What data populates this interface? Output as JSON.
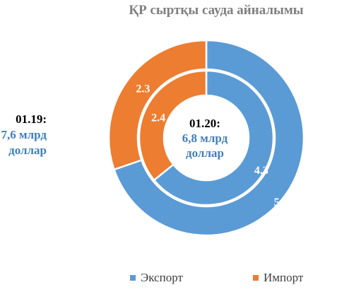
{
  "chart_data": {
    "type": "donut",
    "title": "ҚР сыртқы сауда айналымы",
    "categories": [
      "Экспорт",
      "Импорт"
    ],
    "colors": {
      "Экспорт": "#5b9bd5",
      "Импорт": "#ed7d31"
    },
    "series": [
      {
        "name": "01.19",
        "ring": "outer",
        "values": [
          5.3,
          2.3
        ],
        "labels": [
          "5.3",
          "2.3"
        ]
      },
      {
        "name": "01.20",
        "ring": "inner",
        "values": [
          4.3,
          2.4
        ],
        "labels": [
          "4.3",
          "2.4"
        ]
      }
    ],
    "annotations": {
      "outer": {
        "date": "01.19:",
        "value_line1": "7,6 млрд",
        "value_line2": "доллар"
      },
      "inner": {
        "date": "01.20:",
        "value_line1": "6,8 млрд",
        "value_line2": "доллар"
      }
    },
    "legend": {
      "position": "bottom",
      "items": [
        "Экспорт",
        "Импорт"
      ]
    }
  }
}
